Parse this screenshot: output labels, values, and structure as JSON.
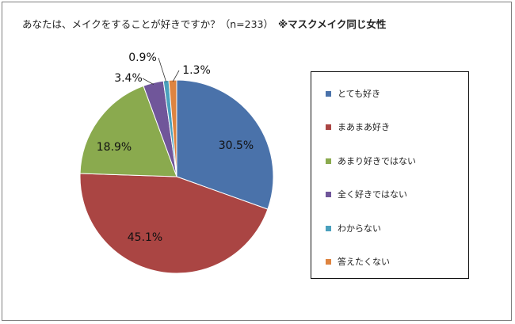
{
  "chart_data": {
    "type": "pie",
    "title": "あなたは、メイクをすることが好きですか？（n=233）",
    "title_note": "※マスクメイク同じ女性",
    "categories": [
      "とても好き",
      "まあまあ好き",
      "あまり好きではない",
      "全く好きではない",
      "わからない",
      "答えたくない"
    ],
    "values": [
      30.5,
      45.1,
      18.9,
      3.4,
      0.9,
      1.3
    ],
    "labels": [
      "30.5%",
      "45.1%",
      "18.9%",
      "3.4%",
      "0.9%",
      "1.3%"
    ],
    "colors": [
      "#4a72aa",
      "#aa4543",
      "#8aaa4e",
      "#70569a",
      "#4aa0bd",
      "#de8440"
    ],
    "legend_position": "right",
    "start_angle_deg": 0,
    "direction": "clockwise"
  }
}
